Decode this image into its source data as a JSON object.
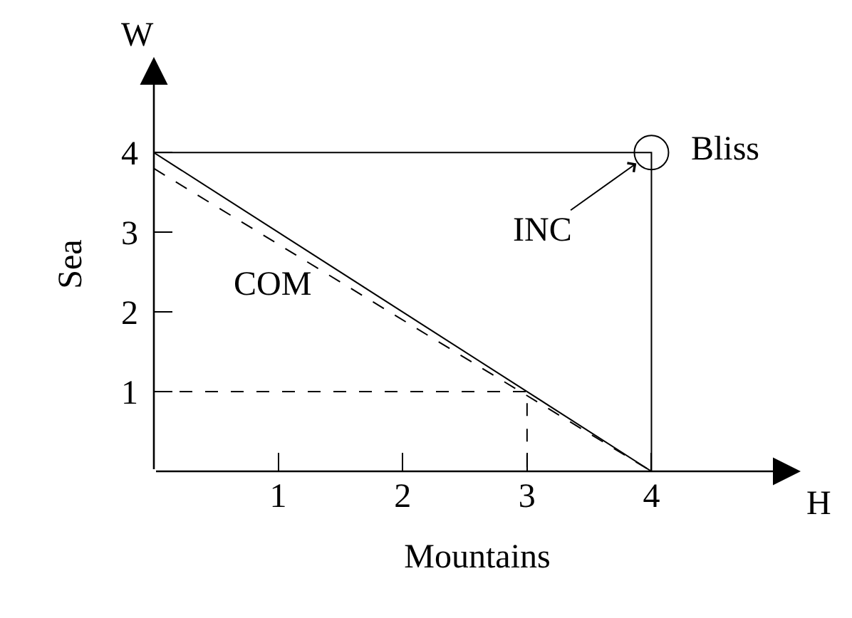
{
  "chart_data": {
    "type": "line",
    "xlabel": "Mountains",
    "ylabel": "Sea",
    "xlim": [
      0,
      5.2
    ],
    "ylim": [
      0,
      5.2
    ],
    "xticks": [
      1,
      2,
      3,
      4
    ],
    "yticks": [
      1,
      2,
      3,
      4
    ],
    "marker": "none",
    "line_style": "solid",
    "series": [
      {
        "color": "#000000",
        "x": [
          0,
          4
        ],
        "values": [
          4,
          0
        ]
      },
      {
        "color": "#000000",
        "x": [
          0,
          4
        ],
        "values": [
          3.8,
          0
        ],
        "line_style": "dashed"
      },
      {
        "color": "#000000",
        "x": [
          0,
          4,
          4
        ],
        "values": [
          4,
          4,
          0
        ]
      },
      {
        "color": "#000000",
        "x": [
          0,
          3,
          3
        ],
        "values": [
          1,
          1,
          0
        ],
        "line_style": "dashed"
      },
      {
        "type": "scatter",
        "color": "#000000",
        "x": [
          4
        ],
        "values": [
          4
        ],
        "marker": "circle"
      }
    ],
    "annotations": [
      {
        "text": "Bliss",
        "x": 4,
        "y": 4
      },
      {
        "text": "INC",
        "x": 4,
        "y": 4
      },
      "COM",
      "W",
      "H"
    ]
  }
}
